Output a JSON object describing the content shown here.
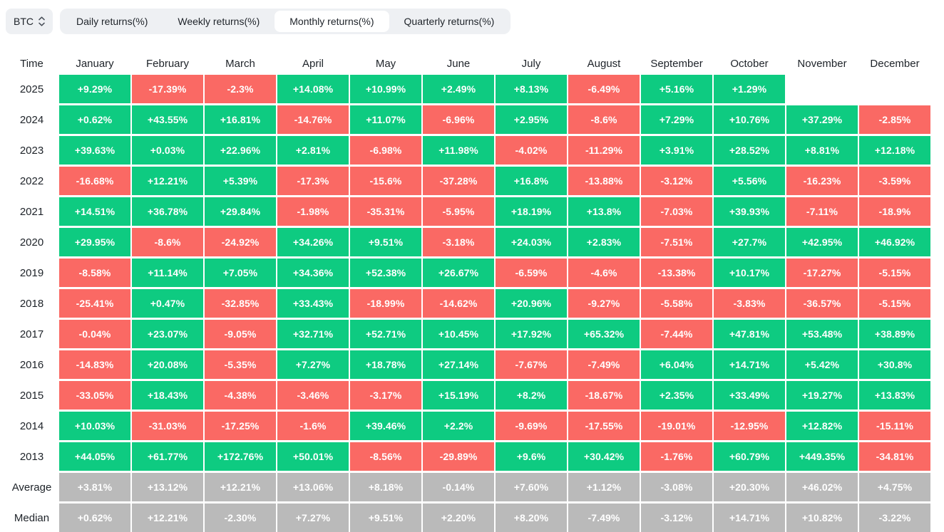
{
  "controls": {
    "symbol_select": {
      "value": "BTC"
    },
    "tabs": [
      {
        "id": "daily",
        "label": "Daily returns(%)",
        "active": false
      },
      {
        "id": "weekly",
        "label": "Weekly returns(%)",
        "active": false
      },
      {
        "id": "monthly",
        "label": "Monthly returns(%)",
        "active": true
      },
      {
        "id": "quarterly",
        "label": "Quarterly returns(%)",
        "active": false
      }
    ]
  },
  "colors": {
    "positive": "#0ecb81",
    "negative": "#fa6964",
    "summary": "#bababa"
  },
  "table": {
    "time_header": "Time",
    "month_headers": [
      "January",
      "February",
      "March",
      "April",
      "May",
      "June",
      "July",
      "August",
      "September",
      "October",
      "November",
      "December"
    ],
    "rows": [
      {
        "label": "2025",
        "type": "year",
        "values": [
          "+9.29%",
          "-17.39%",
          "-2.3%",
          "+14.08%",
          "+10.99%",
          "+2.49%",
          "+8.13%",
          "-6.49%",
          "+5.16%",
          "+1.29%",
          "",
          ""
        ]
      },
      {
        "label": "2024",
        "type": "year",
        "values": [
          "+0.62%",
          "+43.55%",
          "+16.81%",
          "-14.76%",
          "+11.07%",
          "-6.96%",
          "+2.95%",
          "-8.6%",
          "+7.29%",
          "+10.76%",
          "+37.29%",
          "-2.85%"
        ]
      },
      {
        "label": "2023",
        "type": "year",
        "values": [
          "+39.63%",
          "+0.03%",
          "+22.96%",
          "+2.81%",
          "-6.98%",
          "+11.98%",
          "-4.02%",
          "-11.29%",
          "+3.91%",
          "+28.52%",
          "+8.81%",
          "+12.18%"
        ]
      },
      {
        "label": "2022",
        "type": "year",
        "values": [
          "-16.68%",
          "+12.21%",
          "+5.39%",
          "-17.3%",
          "-15.6%",
          "-37.28%",
          "+16.8%",
          "-13.88%",
          "-3.12%",
          "+5.56%",
          "-16.23%",
          "-3.59%"
        ]
      },
      {
        "label": "2021",
        "type": "year",
        "values": [
          "+14.51%",
          "+36.78%",
          "+29.84%",
          "-1.98%",
          "-35.31%",
          "-5.95%",
          "+18.19%",
          "+13.8%",
          "-7.03%",
          "+39.93%",
          "-7.11%",
          "-18.9%"
        ]
      },
      {
        "label": "2020",
        "type": "year",
        "values": [
          "+29.95%",
          "-8.6%",
          "-24.92%",
          "+34.26%",
          "+9.51%",
          "-3.18%",
          "+24.03%",
          "+2.83%",
          "-7.51%",
          "+27.7%",
          "+42.95%",
          "+46.92%"
        ]
      },
      {
        "label": "2019",
        "type": "year",
        "values": [
          "-8.58%",
          "+11.14%",
          "+7.05%",
          "+34.36%",
          "+52.38%",
          "+26.67%",
          "-6.59%",
          "-4.6%",
          "-13.38%",
          "+10.17%",
          "-17.27%",
          "-5.15%"
        ]
      },
      {
        "label": "2018",
        "type": "year",
        "values": [
          "-25.41%",
          "+0.47%",
          "-32.85%",
          "+33.43%",
          "-18.99%",
          "-14.62%",
          "+20.96%",
          "-9.27%",
          "-5.58%",
          "-3.83%",
          "-36.57%",
          "-5.15%"
        ]
      },
      {
        "label": "2017",
        "type": "year",
        "values": [
          "-0.04%",
          "+23.07%",
          "-9.05%",
          "+32.71%",
          "+52.71%",
          "+10.45%",
          "+17.92%",
          "+65.32%",
          "-7.44%",
          "+47.81%",
          "+53.48%",
          "+38.89%"
        ]
      },
      {
        "label": "2016",
        "type": "year",
        "values": [
          "-14.83%",
          "+20.08%",
          "-5.35%",
          "+7.27%",
          "+18.78%",
          "+27.14%",
          "-7.67%",
          "-7.49%",
          "+6.04%",
          "+14.71%",
          "+5.42%",
          "+30.8%"
        ]
      },
      {
        "label": "2015",
        "type": "year",
        "values": [
          "-33.05%",
          "+18.43%",
          "-4.38%",
          "-3.46%",
          "-3.17%",
          "+15.19%",
          "+8.2%",
          "-18.67%",
          "+2.35%",
          "+33.49%",
          "+19.27%",
          "+13.83%"
        ]
      },
      {
        "label": "2014",
        "type": "year",
        "values": [
          "+10.03%",
          "-31.03%",
          "-17.25%",
          "-1.6%",
          "+39.46%",
          "+2.2%",
          "-9.69%",
          "-17.55%",
          "-19.01%",
          "-12.95%",
          "+12.82%",
          "-15.11%"
        ]
      },
      {
        "label": "2013",
        "type": "year",
        "values": [
          "+44.05%",
          "+61.77%",
          "+172.76%",
          "+50.01%",
          "-8.56%",
          "-29.89%",
          "+9.6%",
          "+30.42%",
          "-1.76%",
          "+60.79%",
          "+449.35%",
          "-34.81%"
        ]
      },
      {
        "label": "Average",
        "type": "summary",
        "values": [
          "+3.81%",
          "+13.12%",
          "+12.21%",
          "+13.06%",
          "+8.18%",
          "-0.14%",
          "+7.60%",
          "+1.12%",
          "-3.08%",
          "+20.30%",
          "+46.02%",
          "+4.75%"
        ]
      },
      {
        "label": "Median",
        "type": "summary",
        "values": [
          "+0.62%",
          "+12.21%",
          "-2.30%",
          "+7.27%",
          "+9.51%",
          "+2.20%",
          "+8.20%",
          "-7.49%",
          "-3.12%",
          "+14.71%",
          "+10.82%",
          "-3.22%"
        ]
      }
    ]
  }
}
